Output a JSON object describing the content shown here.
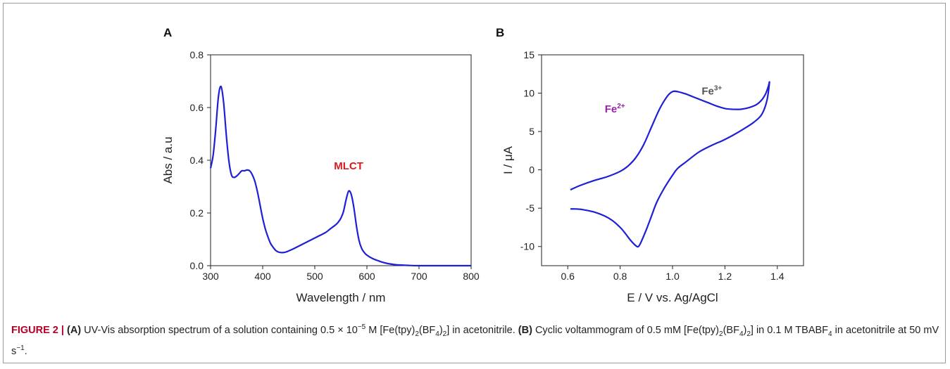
{
  "chart_data": [
    {
      "type": "line",
      "panel_label": "A",
      "title": "",
      "xlabel": "Wavelength / nm",
      "ylabel": "Abs / a.u",
      "xlim": [
        300,
        800
      ],
      "ylim": [
        0,
        0.8
      ],
      "xticks": [
        300,
        400,
        500,
        600,
        700,
        800
      ],
      "yticks": [
        "0.0",
        "0.2",
        "0.4",
        "0.6",
        "0.8"
      ],
      "annotations": [
        {
          "text": "MLCT",
          "color": "#d7191c",
          "x": 565,
          "y": 0.365
        }
      ],
      "grid": false,
      "series": [
        {
          "color": "#1f1fd6",
          "x": [
            300,
            305,
            310,
            315,
            320,
            325,
            330,
            335,
            340,
            345,
            350,
            355,
            360,
            365,
            370,
            375,
            380,
            385,
            390,
            395,
            400,
            405,
            410,
            415,
            420,
            425,
            430,
            435,
            440,
            445,
            450,
            460,
            470,
            480,
            490,
            500,
            510,
            520,
            530,
            540,
            545,
            550,
            555,
            560,
            565,
            570,
            575,
            580,
            585,
            590,
            595,
            600,
            610,
            620,
            630,
            640,
            650,
            660,
            680,
            700,
            750,
            800
          ],
          "y": [
            0.37,
            0.42,
            0.52,
            0.64,
            0.68,
            0.62,
            0.5,
            0.4,
            0.345,
            0.335,
            0.34,
            0.35,
            0.36,
            0.36,
            0.363,
            0.36,
            0.345,
            0.32,
            0.28,
            0.23,
            0.18,
            0.14,
            0.11,
            0.085,
            0.07,
            0.058,
            0.052,
            0.05,
            0.05,
            0.052,
            0.056,
            0.065,
            0.075,
            0.085,
            0.095,
            0.105,
            0.115,
            0.125,
            0.14,
            0.155,
            0.165,
            0.18,
            0.205,
            0.25,
            0.283,
            0.27,
            0.22,
            0.15,
            0.095,
            0.065,
            0.05,
            0.04,
            0.028,
            0.02,
            0.013,
            0.008,
            0.005,
            0.003,
            0.001,
            0.0,
            0.0,
            0.0
          ]
        }
      ]
    },
    {
      "type": "line",
      "panel_label": "B",
      "title": "",
      "xlabel": "E / V vs. Ag/AgCl",
      "ylabel": "I / μA",
      "xlim": [
        0.5,
        1.5
      ],
      "ylim": [
        -12.5,
        15
      ],
      "xticks": [
        "0.6",
        "0.8",
        "1.0",
        "1.2",
        "1.4"
      ],
      "yticks": [
        "-10",
        "-5",
        "0",
        "5",
        "10",
        "15"
      ],
      "annotations": [
        {
          "text": "Fe",
          "sup": "2+",
          "color": "#9a1fa8",
          "x": 0.78,
          "y": 7.5
        },
        {
          "text": "Fe",
          "sup": "3+",
          "color": "#555555",
          "x": 1.15,
          "y": 9.8
        }
      ],
      "grid": false,
      "series": [
        {
          "color": "#1f1fd6",
          "x": [
            0.61,
            0.65,
            0.7,
            0.75,
            0.8,
            0.83,
            0.86,
            0.89,
            0.92,
            0.95,
            0.98,
            1.0,
            1.02,
            1.05,
            1.08,
            1.11,
            1.14,
            1.17,
            1.2,
            1.23,
            1.26,
            1.29,
            1.32,
            1.34,
            1.355,
            1.365,
            1.37,
            1.36,
            1.34,
            1.31,
            1.27,
            1.23,
            1.19,
            1.15,
            1.1,
            1.05,
            1.02,
            1.0,
            0.97,
            0.94,
            0.92,
            0.9,
            0.88,
            0.87,
            0.86,
            0.84,
            0.82,
            0.8,
            0.77,
            0.74,
            0.7,
            0.66,
            0.63,
            0.61
          ],
          "y": [
            -2.6,
            -2.0,
            -1.4,
            -0.9,
            -0.2,
            0.5,
            1.6,
            3.3,
            5.6,
            7.9,
            9.6,
            10.2,
            10.2,
            9.9,
            9.5,
            9.1,
            8.7,
            8.3,
            8.0,
            7.9,
            7.9,
            8.1,
            8.5,
            9.1,
            9.9,
            10.8,
            11.4,
            9.0,
            7.2,
            6.2,
            5.3,
            4.5,
            3.8,
            3.2,
            2.3,
            1.0,
            0.2,
            -0.7,
            -2.3,
            -4.2,
            -6.0,
            -7.8,
            -9.4,
            -10.0,
            -9.9,
            -9.2,
            -8.3,
            -7.5,
            -6.6,
            -6.0,
            -5.5,
            -5.2,
            -5.1,
            -5.1
          ]
        }
      ]
    }
  ],
  "caption": {
    "figure_label": "FIGURE 2 |",
    "a_label": "(A)",
    "a_text_1": "UV-Vis absorption spectrum of a solution containing 0.5 × 10",
    "a_exp": "−5",
    "a_text_2": " M [Fe(tpy)",
    "a_sub1": "2",
    "a_text_3": "(BF",
    "a_sub2": "4",
    "a_text_4": ")",
    "a_sub3": "2",
    "a_text_5": "] in acetonitrile.",
    "b_label": "(B)",
    "b_text_1": "Cyclic voltammogram of 0.5 mM [Fe(tpy)",
    "b_sub1": "2",
    "b_text_2": "(BF",
    "b_sub2": "4",
    "b_text_3": ")",
    "b_sub3": "2",
    "b_text_4": "] in 0.1 M TBABF",
    "b_sub4": "4",
    "b_text_5": " in acetonitrile at 50 mV s",
    "b_exp": "−1",
    "b_text_6": "."
  }
}
